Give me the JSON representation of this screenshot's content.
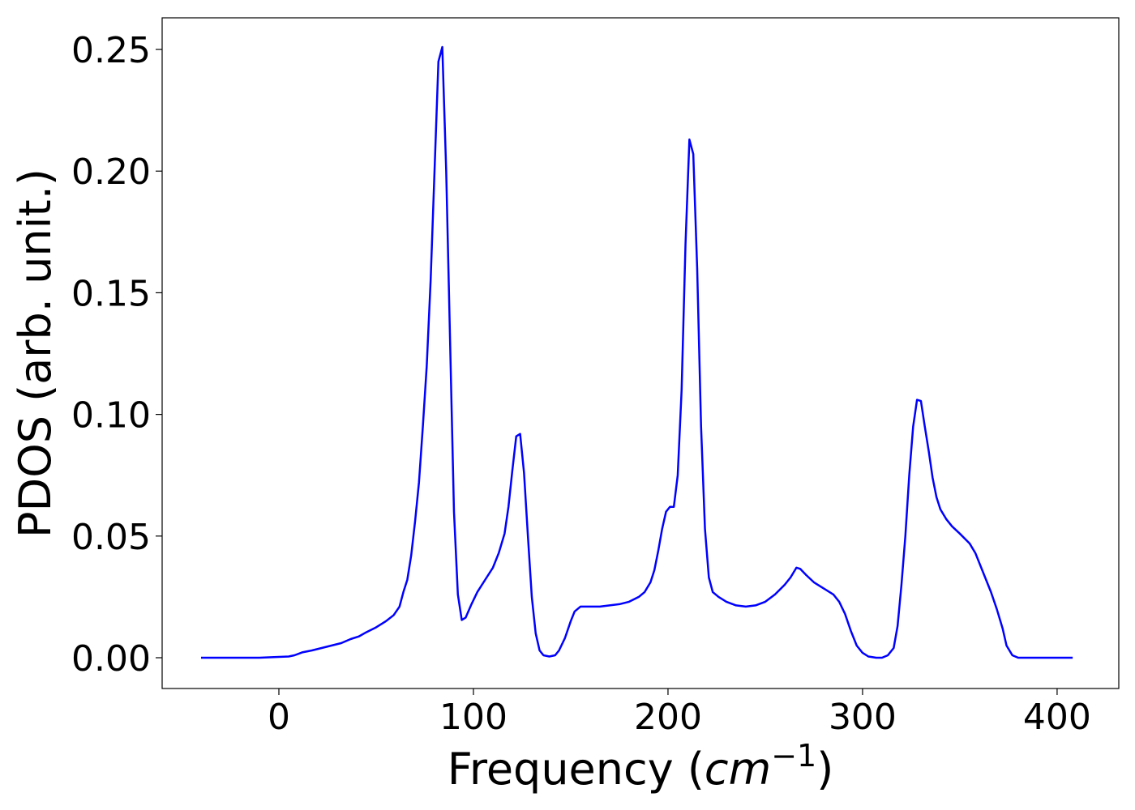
{
  "chart_data": {
    "type": "line",
    "ylabel": "PDOS (arb. unit.)",
    "xlabel": [
      "Frequency (",
      "cm",
      "−1",
      ")"
    ],
    "xlim": [
      -60,
      431.7
    ],
    "ylim": [
      -0.01265,
      0.263
    ],
    "xticks": [
      0,
      100,
      200,
      300,
      400
    ],
    "yticks": [
      {
        "value": 0,
        "label": "0.00"
      },
      {
        "value": 0.05,
        "label": "0.05"
      },
      {
        "value": 0.1,
        "label": "0.10"
      },
      {
        "value": 0.15,
        "label": "0.15"
      },
      {
        "value": 0.2,
        "label": "0.20"
      },
      {
        "value": 0.25,
        "label": "0.25"
      }
    ],
    "series": [
      {
        "color": "#0000ff",
        "x": [
          -40,
          -10,
          5,
          8,
          12,
          17,
          22,
          27,
          32,
          37,
          41,
          45,
          50,
          55,
          59,
          62,
          64,
          66,
          68,
          70,
          72,
          74,
          76,
          78,
          80,
          82,
          84,
          86,
          88,
          90,
          92,
          94,
          96,
          99,
          102,
          106,
          110,
          113,
          116,
          118,
          120,
          122,
          124,
          126,
          128,
          130,
          132,
          134,
          136,
          139,
          142,
          144,
          147,
          150,
          152,
          155,
          160,
          165,
          170,
          175,
          180,
          185,
          188,
          191,
          193,
          195,
          197,
          199,
          201,
          203,
          205,
          207,
          209,
          211,
          213,
          215,
          217,
          219,
          221,
          223,
          226,
          230,
          235,
          240,
          245,
          250,
          255,
          260,
          263,
          266,
          268,
          271,
          275,
          280,
          285,
          288,
          291,
          294,
          297,
          300,
          303,
          307,
          310,
          313,
          316,
          318,
          320,
          322,
          324,
          326,
          328,
          330,
          332,
          334,
          336,
          338,
          340,
          343,
          346,
          350,
          355,
          358,
          362,
          366,
          369,
          372,
          374,
          377,
          380,
          390,
          408
        ],
        "values": [
          0,
          0,
          0.0005,
          0.001,
          0.0022,
          0.003,
          0.004,
          0.005,
          0.006,
          0.0077,
          0.0087,
          0.0105,
          0.0125,
          0.015,
          0.0175,
          0.021,
          0.027,
          0.032,
          0.042,
          0.056,
          0.072,
          0.095,
          0.12,
          0.155,
          0.2,
          0.245,
          0.251,
          0.2,
          0.13,
          0.06,
          0.026,
          0.0155,
          0.0165,
          0.022,
          0.027,
          0.032,
          0.037,
          0.043,
          0.051,
          0.062,
          0.077,
          0.091,
          0.092,
          0.076,
          0.05,
          0.025,
          0.01,
          0.003,
          0.001,
          0.0005,
          0.001,
          0.003,
          0.008,
          0.015,
          0.019,
          0.021,
          0.021,
          0.021,
          0.0215,
          0.022,
          0.023,
          0.025,
          0.027,
          0.031,
          0.036,
          0.044,
          0.053,
          0.06,
          0.062,
          0.062,
          0.075,
          0.11,
          0.17,
          0.213,
          0.207,
          0.16,
          0.095,
          0.053,
          0.033,
          0.027,
          0.025,
          0.023,
          0.0215,
          0.021,
          0.0215,
          0.023,
          0.026,
          0.03,
          0.033,
          0.037,
          0.0365,
          0.034,
          0.031,
          0.0285,
          0.026,
          0.023,
          0.018,
          0.011,
          0.005,
          0.002,
          0.0005,
          0,
          0,
          0.001,
          0.004,
          0.013,
          0.03,
          0.05,
          0.075,
          0.095,
          0.106,
          0.1055,
          0.095,
          0.085,
          0.074,
          0.066,
          0.061,
          0.057,
          0.054,
          0.051,
          0.047,
          0.043,
          0.035,
          0.027,
          0.02,
          0.012,
          0.005,
          0.001,
          0,
          0,
          0
        ]
      }
    ]
  }
}
